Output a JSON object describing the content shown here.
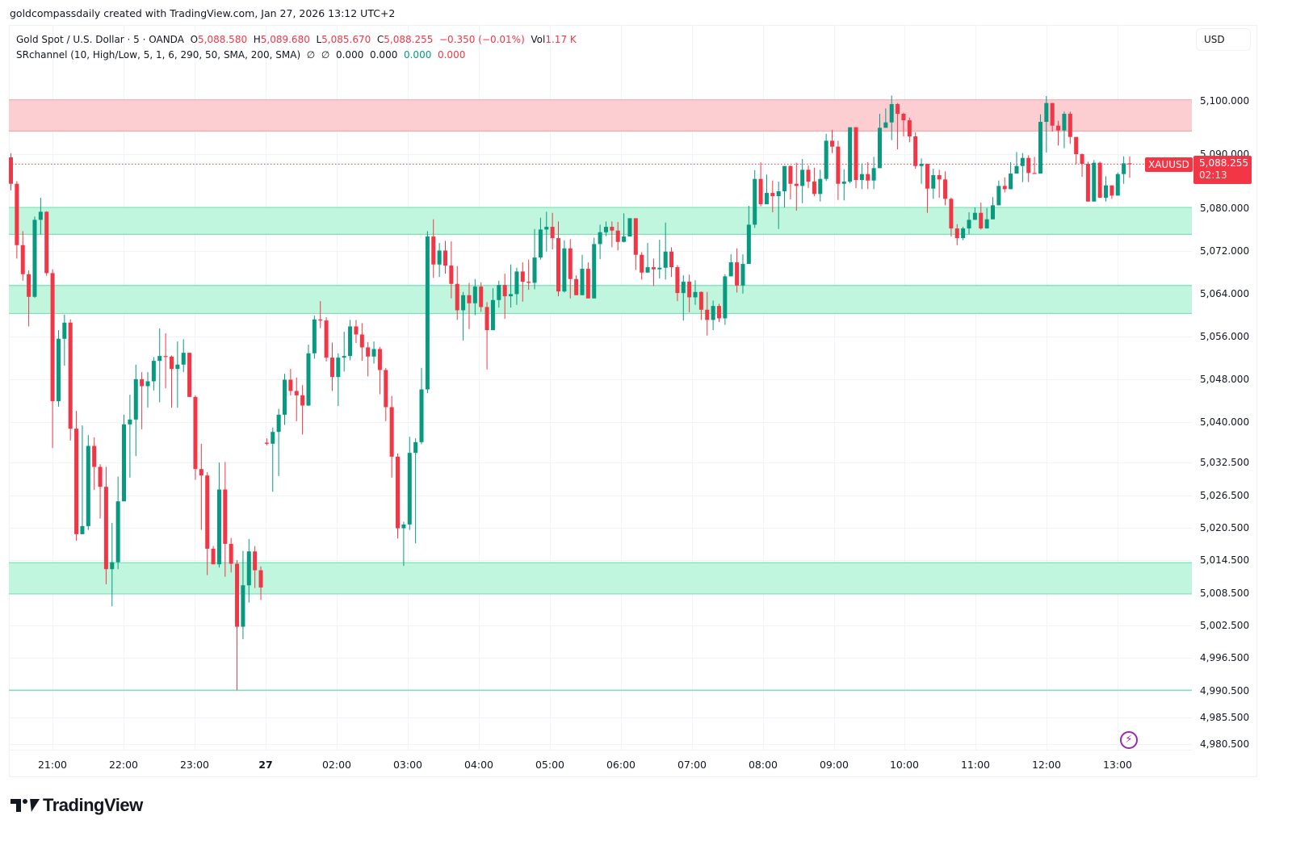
{
  "header": {
    "credit": "goldcompassdaily created with TradingView.com, Jan 27, 2026 13:12 UTC+2"
  },
  "legend": {
    "symbol": "Gold Spot / U.S. Dollar · 5 · OANDA",
    "o_label": "O",
    "o_value": "5,088.580",
    "h_label": "H",
    "h_value": "5,089.680",
    "l_label": "L",
    "l_value": "5,085.670",
    "c_label": "C",
    "c_value": "5,088.255",
    "change": "−0.350 (−0.01%)",
    "vol_label": "Vol",
    "vol_value": "1.17 K",
    "indicator": "SRchannel (10, High/Low, 5, 1, 6, 290, 50, SMA, 200, SMA)",
    "ind_sym1": "∅",
    "ind_sym2": "∅",
    "ind_v1": "0.000",
    "ind_v2": "0.000",
    "ind_v3": "0.000",
    "ind_v4": "0.000"
  },
  "price_scale": {
    "currency_button": "USD",
    "last_price": "5,088.255",
    "countdown": "02:13",
    "symbol_tag": "XAUUSD"
  },
  "logo": {
    "text": "TradingView"
  },
  "colors": {
    "up": "#089981",
    "down": "#f23645",
    "support_fill": "#bdf5dc",
    "support_line": "#7ee0b5",
    "resistance_fill": "#fccbcf",
    "resistance_line": "#f7a9b0",
    "grid": "#f0f3fa",
    "alert_icon": "#9c27b0"
  },
  "chart_data": {
    "type": "candlestick",
    "title": "Gold Spot / U.S. Dollar · 5 · OANDA",
    "symbol": "XAUUSD",
    "timeframe": "5",
    "xlabel": "",
    "ylabel": "USD",
    "ylim": [
      4978.0,
      5113.0
    ],
    "grid": true,
    "x_ticks": [
      "21:00",
      "22:00",
      "23:00",
      "27",
      "02:00",
      "03:00",
      "04:00",
      "05:00",
      "06:00",
      "07:00",
      "08:00",
      "09:00",
      "10:00",
      "11:00",
      "12:00",
      "13:00"
    ],
    "y_ticks": [
      "5,100.000",
      "5,090.000",
      "5,080.000",
      "5,072.000",
      "5,064.000",
      "5,056.000",
      "5,048.000",
      "5,040.000",
      "5,032.500",
      "5,026.500",
      "5,020.500",
      "5,014.500",
      "5,008.500",
      "5,002.500",
      "4,996.500",
      "4,990.500",
      "4,985.500",
      "4,980.500"
    ],
    "last_price": 5088.255,
    "sr_zones": [
      {
        "type": "resistance",
        "from": 5094.4,
        "to": 5100.2
      },
      {
        "type": "support",
        "from": 5075.2,
        "to": 5080.2
      },
      {
        "type": "support",
        "from": 5060.5,
        "to": 5065.7
      },
      {
        "type": "support",
        "from": 5008.4,
        "to": 5014.2
      },
      {
        "type": "support_line",
        "from": 4990.5,
        "to": 4990.5
      }
    ],
    "candles": [
      [
        5089.5,
        5084.6,
        5090.3,
        5083.4
      ],
      [
        5084.6,
        5073.2,
        5085.1,
        5070.7
      ],
      [
        5073.2,
        5067.8,
        5075.8,
        5066.6
      ],
      [
        5067.8,
        5063.6,
        5068.5,
        5058.1
      ],
      [
        5063.6,
        5077.9,
        5078.5,
        5063.4
      ],
      [
        5077.9,
        5079.4,
        5082.0,
        5075.2
      ],
      [
        5079.4,
        5068.0,
        5079.5,
        5067.5
      ],
      [
        5068.0,
        5044.2,
        5068.7,
        5035.5
      ],
      [
        5044.2,
        5055.8,
        5057.4,
        5043.2
      ],
      [
        5055.8,
        5058.8,
        5060.3,
        5050.8
      ],
      [
        5058.8,
        5039.1,
        5059.4,
        5036.9
      ],
      [
        5039.1,
        5019.5,
        5042.4,
        5018.3
      ],
      [
        5019.5,
        5021.0,
        5039.7,
        5020.3
      ],
      [
        5021.0,
        5035.9,
        5037.9,
        5020.3
      ],
      [
        5035.9,
        5032.0,
        5037.5,
        5027.7
      ],
      [
        5032.0,
        5028.3,
        5032.5,
        5022.4
      ],
      [
        5028.3,
        5013.0,
        5032.0,
        5010.2
      ],
      [
        5013.0,
        5014.3,
        5021.6,
        5006.1
      ],
      [
        5014.3,
        5025.6,
        5030.2,
        5013.0
      ],
      [
        5025.6,
        5039.9,
        5041.7,
        5028.3
      ],
      [
        5039.9,
        5040.8,
        5045.4,
        5030.0
      ],
      [
        5040.8,
        5048.3,
        5051.0,
        5034.0
      ],
      [
        5048.3,
        5047.0,
        5049.6,
        5039.0
      ],
      [
        5047.0,
        5047.9,
        5049.6,
        5043.0
      ],
      [
        5047.9,
        5051.7,
        5052.4,
        5046.2
      ],
      [
        5051.7,
        5052.6,
        5057.7,
        5044.0
      ],
      [
        5052.6,
        5052.5,
        5056.8,
        5046.6
      ],
      [
        5052.5,
        5050.2,
        5052.7,
        5043.0
      ],
      [
        5050.2,
        5051.0,
        5055.3,
        5043.0
      ],
      [
        5051.0,
        5053.2,
        5055.7,
        5049.6
      ],
      [
        5053.2,
        5045.0,
        5053.2,
        5045.0
      ],
      [
        5045.0,
        5031.6,
        5045.3,
        5029.6
      ],
      [
        5031.6,
        5030.4,
        5036.3,
        5020.3
      ],
      [
        5030.4,
        5016.8,
        5031.0,
        5011.9
      ],
      [
        5016.8,
        5013.9,
        5017.3,
        5015.0
      ],
      [
        5013.9,
        5027.8,
        5032.8,
        5013.3
      ],
      [
        5027.8,
        5017.7,
        5032.9,
        5011.6
      ],
      [
        5017.7,
        5014.0,
        5018.8,
        5012.4
      ],
      [
        5014.0,
        5002.3,
        5014.7,
        4990.5
      ],
      [
        5002.3,
        5010.0,
        5016.4,
        5000.0
      ],
      [
        5010.0,
        5016.3,
        5018.6,
        5006.8
      ],
      [
        5016.3,
        5012.8,
        5017.3,
        5009.5
      ],
      [
        5012.8,
        5009.6,
        5013.5,
        5007.3
      ],
      [
        5036.5,
        5036.3,
        5037.3,
        5036.0
      ],
      [
        5036.3,
        5038.5,
        5039.3,
        5027.4
      ],
      [
        5038.5,
        5041.7,
        5042.8,
        5030.3
      ],
      [
        5041.7,
        5048.2,
        5049.3,
        5039.8
      ],
      [
        5048.2,
        5046.1,
        5050.2,
        5045.3
      ],
      [
        5046.1,
        5045.3,
        5048.6,
        5040.5
      ],
      [
        5045.3,
        5043.4,
        5047.2,
        5038.0
      ],
      [
        5043.4,
        5053.1,
        5054.7,
        5043.3
      ],
      [
        5053.1,
        5059.4,
        5060.1,
        5052.1
      ],
      [
        5059.4,
        5059.2,
        5062.8,
        5057.8
      ],
      [
        5059.2,
        5052.3,
        5059.8,
        5051.6
      ],
      [
        5052.3,
        5048.7,
        5055.1,
        5046.1
      ],
      [
        5048.7,
        5052.3,
        5053.1,
        5043.3
      ],
      [
        5052.3,
        5052.6,
        5057.1,
        5049.7
      ],
      [
        5052.6,
        5058.1,
        5059.3,
        5051.8
      ],
      [
        5058.1,
        5056.6,
        5059.3,
        5055.0
      ],
      [
        5056.6,
        5054.2,
        5058.7,
        5051.7
      ],
      [
        5054.2,
        5052.5,
        5055.2,
        5048.8
      ],
      [
        5052.5,
        5053.9,
        5055.3,
        5051.2
      ],
      [
        5053.9,
        5050.0,
        5054.3,
        5045.5
      ],
      [
        5050.0,
        5043.1,
        5050.4,
        5040.5
      ],
      [
        5043.1,
        5033.9,
        5045.2,
        5030.0
      ],
      [
        5033.9,
        5020.6,
        5034.5,
        5018.7
      ],
      [
        5020.6,
        5021.3,
        5021.8,
        5013.6
      ],
      [
        5021.3,
        5034.6,
        5037.6,
        5020.3
      ],
      [
        5034.6,
        5036.6,
        5037.3,
        5017.8
      ],
      [
        5036.6,
        5046.4,
        5050.4,
        5036.2
      ],
      [
        5046.4,
        5074.8,
        5075.8,
        5045.7
      ],
      [
        5074.8,
        5069.6,
        5078.0,
        5067.1
      ],
      [
        5069.6,
        5072.2,
        5073.6,
        5067.3
      ],
      [
        5072.2,
        5069.4,
        5074.0,
        5067.9
      ],
      [
        5069.4,
        5066.0,
        5073.9,
        5063.3
      ],
      [
        5066.0,
        5061.1,
        5069.3,
        5059.3
      ],
      [
        5061.1,
        5063.9,
        5064.5,
        5055.5
      ],
      [
        5063.9,
        5062.4,
        5066.2,
        5057.6
      ],
      [
        5062.4,
        5065.5,
        5066.9,
        5060.2
      ],
      [
        5065.5,
        5061.7,
        5066.3,
        5060.8
      ],
      [
        5061.7,
        5057.4,
        5062.6,
        5050.1
      ],
      [
        5057.4,
        5063.0,
        5065.2,
        5061.9
      ],
      [
        5063.0,
        5065.8,
        5066.6,
        5061.6
      ],
      [
        5065.8,
        5063.7,
        5067.9,
        5059.5
      ],
      [
        5063.7,
        5064.1,
        5069.6,
        5061.6
      ],
      [
        5064.1,
        5068.3,
        5069.0,
        5062.1
      ],
      [
        5068.3,
        5066.4,
        5070.0,
        5062.7
      ],
      [
        5066.4,
        5066.2,
        5070.5,
        5064.9
      ],
      [
        5066.2,
        5070.9,
        5076.2,
        5065.0
      ],
      [
        5070.9,
        5076.1,
        5078.3,
        5070.5
      ],
      [
        5076.1,
        5076.6,
        5079.4,
        5072.0
      ],
      [
        5076.6,
        5074.5,
        5079.2,
        5072.4
      ],
      [
        5074.5,
        5064.6,
        5077.6,
        5063.7
      ],
      [
        5064.6,
        5072.6,
        5074.1,
        5064.4
      ],
      [
        5072.6,
        5066.9,
        5074.3,
        5063.3
      ],
      [
        5066.9,
        5063.9,
        5067.6,
        5064.0
      ],
      [
        5063.9,
        5068.8,
        5071.4,
        5064.7
      ],
      [
        5068.8,
        5063.3,
        5070.0,
        5063.6
      ],
      [
        5063.3,
        5073.4,
        5074.6,
        5065.8
      ],
      [
        5073.4,
        5075.6,
        5077.0,
        5070.6
      ],
      [
        5075.6,
        5076.6,
        5077.6,
        5074.9
      ],
      [
        5076.6,
        5075.9,
        5077.6,
        5072.8
      ],
      [
        5075.9,
        5073.8,
        5077.5,
        5072.2
      ],
      [
        5073.8,
        5074.8,
        5079.1,
        5073.7
      ],
      [
        5074.8,
        5078.2,
        5078.2,
        5075.2
      ],
      [
        5078.2,
        5071.4,
        5075.7,
        5068.6
      ],
      [
        5071.4,
        5068.1,
        5071.9,
        5066.8
      ],
      [
        5068.1,
        5069.1,
        5073.6,
        5069.7
      ],
      [
        5069.1,
        5068.7,
        5070.7,
        5065.6
      ],
      [
        5068.7,
        5069.0,
        5074.2,
        5067.0
      ],
      [
        5069.0,
        5072.0,
        5077.4,
        5066.8
      ],
      [
        5072.0,
        5069.1,
        5072.8,
        5067.3
      ],
      [
        5069.1,
        5064.3,
        5069.5,
        5062.8
      ],
      [
        5064.3,
        5066.4,
        5067.6,
        5059.2
      ],
      [
        5066.4,
        5063.5,
        5067.7,
        5060.7
      ],
      [
        5063.5,
        5064.5,
        5066.7,
        5062.1
      ],
      [
        5064.5,
        5061.2,
        5064.6,
        5059.3
      ],
      [
        5061.2,
        5059.3,
        5064.5,
        5056.4
      ],
      [
        5059.3,
        5061.9,
        5062.9,
        5057.4
      ],
      [
        5061.9,
        5059.6,
        5062.3,
        5058.9
      ],
      [
        5059.6,
        5067.4,
        5067.8,
        5058.4
      ],
      [
        5067.4,
        5070.0,
        5071.5,
        5068.7
      ],
      [
        5070.0,
        5065.7,
        5072.6,
        5064.4
      ],
      [
        5065.7,
        5069.7,
        5071.5,
        5064.2
      ],
      [
        5069.7,
        5077.0,
        5080.5,
        5071.2
      ],
      [
        5077.0,
        5085.5,
        5087.1,
        5076.4
      ],
      [
        5085.5,
        5080.8,
        5088.6,
        5080.4
      ],
      [
        5080.8,
        5082.9,
        5086.3,
        5082.7
      ],
      [
        5082.9,
        5082.3,
        5085.2,
        5079.3
      ],
      [
        5082.3,
        5083.2,
        5085.0,
        5076.2
      ],
      [
        5083.2,
        5087.9,
        5087.6,
        5080.2
      ],
      [
        5087.9,
        5084.6,
        5088.0,
        5081.7
      ],
      [
        5084.6,
        5084.2,
        5088.5,
        5079.6
      ],
      [
        5084.2,
        5087.2,
        5089.2,
        5081.0
      ],
      [
        5087.2,
        5085.0,
        5088.0,
        5083.8
      ],
      [
        5085.0,
        5082.7,
        5087.6,
        5082.3
      ],
      [
        5082.7,
        5085.5,
        5087.2,
        5081.3
      ],
      [
        5085.5,
        5092.6,
        5093.9,
        5085.1
      ],
      [
        5092.6,
        5091.5,
        5094.6,
        5090.3
      ],
      [
        5091.5,
        5084.6,
        5092.6,
        5081.6
      ],
      [
        5084.6,
        5085.0,
        5087.3,
        5081.5
      ],
      [
        5085.0,
        5095.1,
        5094.4,
        5084.7
      ],
      [
        5095.1,
        5085.3,
        5095.0,
        5083.8
      ],
      [
        5085.3,
        5086.4,
        5088.4,
        5083.6
      ],
      [
        5086.4,
        5085.2,
        5088.6,
        5083.6
      ],
      [
        5085.2,
        5087.5,
        5089.6,
        5083.6
      ],
      [
        5087.5,
        5095.0,
        5097.6,
        5088.6
      ],
      [
        5095.0,
        5096.0,
        5098.6,
        5095.9
      ],
      [
        5096.0,
        5099.4,
        5101.0,
        5092.7
      ],
      [
        5099.4,
        5097.6,
        5099.6,
        5091.0
      ],
      [
        5097.6,
        5096.4,
        5097.8,
        5093.4
      ],
      [
        5096.4,
        5093.4,
        5096.9,
        5092.3
      ],
      [
        5093.4,
        5087.9,
        5094.2,
        5087.4
      ],
      [
        5087.9,
        5088.3,
        5089.3,
        5084.6
      ],
      [
        5088.3,
        5083.7,
        5088.3,
        5079.2
      ],
      [
        5083.7,
        5086.2,
        5087.4,
        5081.8
      ],
      [
        5086.2,
        5085.4,
        5087.2,
        5082.0
      ],
      [
        5085.4,
        5081.8,
        5086.9,
        5080.6
      ],
      [
        5081.8,
        5076.3,
        5082.0,
        5074.8
      ],
      [
        5076.3,
        5074.5,
        5077.1,
        5073.2
      ],
      [
        5074.5,
        5076.3,
        5076.6,
        5074.1
      ],
      [
        5076.3,
        5077.9,
        5079.3,
        5075.2
      ],
      [
        5077.9,
        5079.2,
        5080.2,
        5077.9
      ],
      [
        5079.2,
        5076.3,
        5081.1,
        5076.1
      ],
      [
        5076.3,
        5078.0,
        5080.1,
        5077.6
      ],
      [
        5078.0,
        5080.6,
        5082.1,
        5080.4
      ],
      [
        5080.6,
        5084.2,
        5085.2,
        5081.4
      ],
      [
        5084.2,
        5083.6,
        5085.8,
        5083.0
      ],
      [
        5083.6,
        5086.5,
        5088.6,
        5085.1
      ],
      [
        5086.5,
        5087.9,
        5090.5,
        5086.8
      ],
      [
        5087.9,
        5089.4,
        5090.3,
        5084.9
      ],
      [
        5089.4,
        5086.6,
        5089.9,
        5084.9
      ],
      [
        5086.6,
        5086.5,
        5089.6,
        5087.0
      ],
      [
        5086.5,
        5096.1,
        5097.5,
        5086.9
      ],
      [
        5096.1,
        5099.6,
        5100.9,
        5090.4
      ],
      [
        5099.6,
        5095.4,
        5099.6,
        5094.3
      ],
      [
        5095.4,
        5094.5,
        5096.3,
        5091.7
      ],
      [
        5094.5,
        5097.6,
        5098.0,
        5091.2
      ],
      [
        5097.6,
        5093.3,
        5098.0,
        5092.0
      ],
      [
        5093.3,
        5090.1,
        5093.3,
        5088.2
      ],
      [
        5090.1,
        5088.3,
        5090.2,
        5085.9
      ],
      [
        5088.3,
        5081.3,
        5088.7,
        5082.7
      ],
      [
        5081.3,
        5088.5,
        5089.0,
        5081.9
      ],
      [
        5088.5,
        5082.0,
        5088.7,
        5082.6
      ],
      [
        5082.0,
        5084.3,
        5086.0,
        5081.3
      ],
      [
        5084.3,
        5082.4,
        5084.3,
        5081.8
      ],
      [
        5082.4,
        5086.4,
        5086.7,
        5082.4
      ],
      [
        5086.4,
        5088.4,
        5089.7,
        5084.6
      ],
      [
        5088.4,
        5088.3,
        5089.7,
        5085.7
      ]
    ]
  }
}
